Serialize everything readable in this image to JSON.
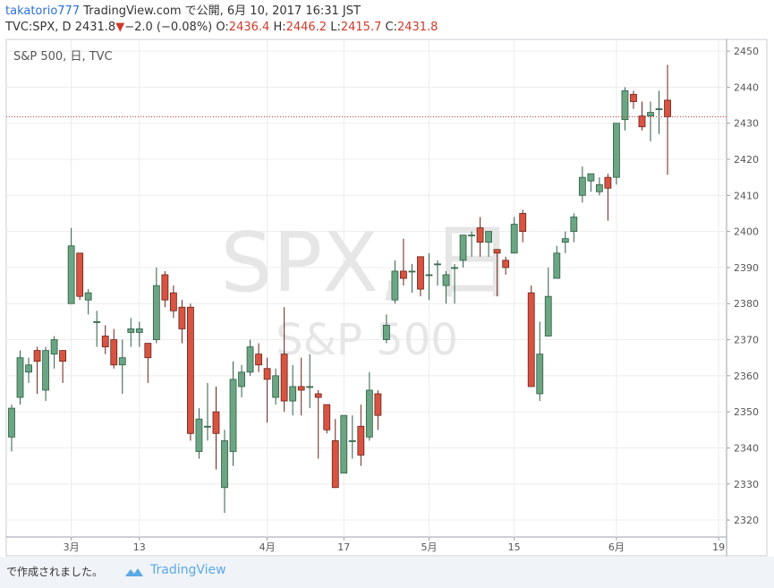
{
  "header": {
    "user": "takatorio777",
    "published": "TradingView.com で公開, 6月 10, 2017 16:31 JST",
    "symbol": "TVC:SPX, D",
    "last": "2431.8",
    "arrow": "▼",
    "change": "−2.0 (−0.08%)",
    "o_label": "O:",
    "o": "2436.4",
    "h_label": "H:",
    "h": "2446.2",
    "l_label": "L:",
    "l": "2415.7",
    "c_label": "C:",
    "c": "2431.8"
  },
  "chart_data": {
    "type": "candlestick",
    "title": "S&P 500, 日, TVC",
    "watermark": [
      "SPX, 日",
      "S&P 500"
    ],
    "categories": [
      null,
      null,
      null,
      null,
      null,
      null,
      null,
      "3月",
      null,
      null,
      null,
      null,
      null,
      null,
      null,
      "13",
      null,
      null,
      null,
      null,
      null,
      null,
      null,
      null,
      null,
      null,
      null,
      null,
      null,
      null,
      "4月",
      null,
      null,
      null,
      null,
      null,
      null,
      null,
      null,
      "17",
      null,
      null,
      null,
      null,
      null,
      null,
      null,
      null,
      null,
      "5月",
      null,
      null,
      null,
      null,
      null,
      null,
      null,
      null,
      null,
      "15",
      null,
      null,
      null,
      null,
      null,
      null,
      null,
      null,
      null,
      null,
      null,
      "6月",
      null,
      null,
      null,
      null,
      null,
      null,
      null,
      null,
      null,
      null,
      null,
      "19"
    ],
    "open": [
      2343,
      2354,
      2361,
      2367,
      2356,
      2366,
      2367,
      2380,
      2394,
      2381,
      2375,
      2371,
      2370,
      2363,
      2372,
      2372,
      2369,
      2370,
      2388,
      2383,
      2379,
      2379,
      2339,
      2346,
      2350,
      2329,
      2339,
      2357,
      2361,
      2366,
      2362,
      2354,
      2366,
      2353,
      2357,
      2357,
      2355,
      2352,
      2342,
      2333,
      2342,
      2346,
      2343,
      2355,
      2370,
      2381,
      2389,
      2389,
      2393,
      2388,
      2391,
      2385,
      2390,
      2392,
      2399,
      2401,
      2397,
      2395,
      2392,
      2394,
      2405,
      2383,
      2355,
      2371,
      2387,
      2397,
      2400,
      2410,
      2414,
      2411,
      2415,
      2415,
      2431,
      2438,
      2432,
      2432,
      2434,
      2436.4,
      null,
      null,
      null,
      null,
      null,
      null
    ],
    "high": [
      2352,
      2367,
      2365,
      2368,
      2368,
      2371,
      2367,
      2401,
      2394,
      2384,
      2378,
      2374,
      2373,
      2370,
      2376,
      2375,
      2369,
      2390,
      2389,
      2385,
      2381,
      2380,
      2351,
      2358,
      2357,
      2345,
      2364,
      2363,
      2370,
      2369,
      2365,
      2362,
      2379,
      2363,
      2365,
      2366,
      2356,
      2352,
      2348,
      2349,
      2349,
      2352,
      2361,
      2356,
      2377,
      2392,
      2398,
      2391,
      2393,
      2394,
      2392,
      2389,
      2391,
      2399,
      2400,
      2404,
      2400,
      2395,
      2393,
      2404,
      2406,
      2385,
      2375,
      2390,
      2396,
      2400,
      2405,
      2418,
      2416,
      2415,
      2416,
      2430,
      2440,
      2439,
      2436,
      2436,
      2439,
      2446.2,
      null,
      null,
      null,
      null,
      null,
      null
    ],
    "low": [
      2339,
      2352,
      2358,
      2355,
      2353,
      2362,
      2358,
      2380,
      2381,
      2377,
      2368,
      2366,
      2362,
      2355,
      2368,
      2368,
      2358,
      2369,
      2379,
      2376,
      2369,
      2342,
      2337,
      2342,
      2334,
      2322,
      2335,
      2354,
      2360,
      2361,
      2347,
      2352,
      2350,
      2349,
      2349,
      2351,
      2337,
      2344,
      2329,
      2333,
      2337,
      2335,
      2342,
      2345,
      2369,
      2380,
      2385,
      2383,
      2382,
      2381,
      2385,
      2380,
      2380,
      2390,
      2393,
      2393,
      2393,
      2382,
      2388,
      2394,
      2397,
      2357,
      2353,
      2371,
      2387,
      2394,
      2397,
      2408,
      2411,
      2410,
      2403,
      2413,
      2428,
      2434,
      2428,
      2425,
      2427,
      2415.7,
      null,
      null,
      null,
      null,
      null,
      null
    ],
    "close": [
      2351,
      2365,
      2363,
      2364,
      2367,
      2370,
      2364,
      2396,
      2382,
      2383,
      2375,
      2368,
      2363,
      2365,
      2373,
      2373,
      2365,
      2385,
      2381,
      2378,
      2373,
      2344,
      2348,
      2346,
      2344,
      2342,
      2359,
      2361,
      2368,
      2363,
      2359,
      2360,
      2353,
      2357,
      2356,
      2357,
      2354,
      2345,
      2329,
      2349,
      2342,
      2338,
      2356,
      2349,
      2374,
      2389,
      2387,
      2389,
      2384,
      2388,
      2391,
      2388,
      2390,
      2399,
      2399,
      2397,
      2400,
      2394,
      2390,
      2402,
      2400,
      2357,
      2366,
      2382,
      2394,
      2398,
      2404,
      2415,
      2416,
      2413,
      2412,
      2430,
      2439,
      2436,
      2429,
      2433,
      2434,
      2431.8,
      null,
      null,
      null,
      null,
      null,
      null
    ],
    "up_color": "#6ba583",
    "down_color": "#d75442",
    "ylim": [
      2315.3,
      2453
    ],
    "yticks": [
      2320,
      2330,
      2340,
      2350,
      2360,
      2370,
      2380,
      2390,
      2400,
      2410,
      2420,
      2430,
      2440,
      2450
    ],
    "grid": true,
    "price_line": true
  },
  "footer": {
    "made": "で作成されました。",
    "brand": "TradingView"
  }
}
